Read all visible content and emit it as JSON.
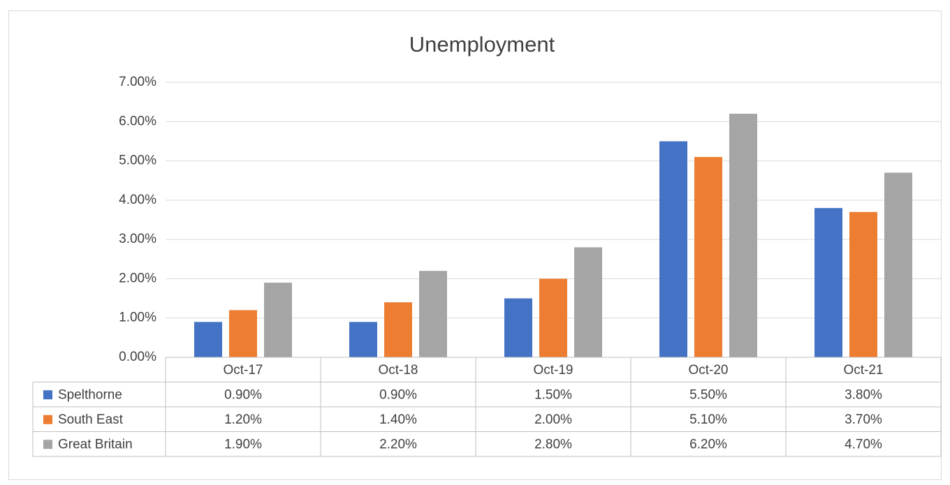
{
  "chart_data": {
    "type": "bar",
    "title": "Unemployment",
    "categories": [
      "Oct-17",
      "Oct-18",
      "Oct-19",
      "Oct-20",
      "Oct-21"
    ],
    "series": [
      {
        "name": "Spelthorne",
        "color": "#4472c4",
        "values": [
          0.9,
          0.9,
          1.5,
          5.5,
          3.8
        ],
        "value_labels": [
          "0.90%",
          "0.90%",
          "1.50%",
          "5.50%",
          "3.80%"
        ]
      },
      {
        "name": "South East",
        "color": "#ed7d31",
        "values": [
          1.2,
          1.4,
          2.0,
          5.1,
          3.7
        ],
        "value_labels": [
          "1.20%",
          "1.40%",
          "2.00%",
          "5.10%",
          "3.70%"
        ]
      },
      {
        "name": "Great Britain",
        "color": "#a5a5a5",
        "values": [
          1.9,
          2.2,
          2.8,
          6.2,
          4.7
        ],
        "value_labels": [
          "1.90%",
          "2.20%",
          "2.80%",
          "6.20%",
          "4.70%"
        ]
      }
    ],
    "ylim": [
      0,
      7
    ],
    "yticks": [
      {
        "value": 0,
        "label": "0.00%"
      },
      {
        "value": 1,
        "label": "1.00%"
      },
      {
        "value": 2,
        "label": "2.00%"
      },
      {
        "value": 3,
        "label": "3.00%"
      },
      {
        "value": 4,
        "label": "4.00%"
      },
      {
        "value": 5,
        "label": "5.00%"
      },
      {
        "value": 6,
        "label": "6.00%"
      },
      {
        "value": 7,
        "label": "7.00%"
      }
    ],
    "grid": true
  }
}
